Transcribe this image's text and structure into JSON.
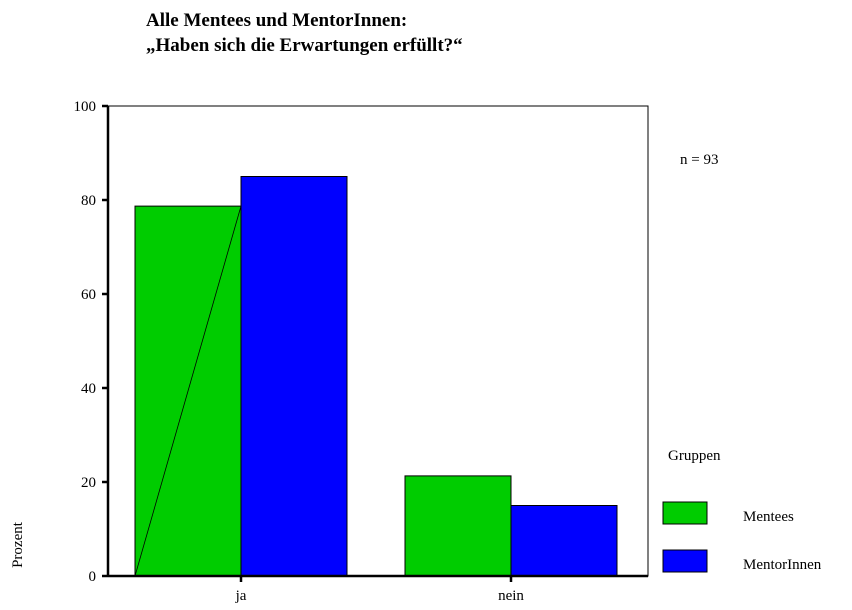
{
  "chart_data": {
    "type": "bar",
    "title": [
      "Alle Mentees und MentorInnen:",
      "„Haben sich die Erwartungen erfüllt?“"
    ],
    "categories": [
      "ja",
      "nein"
    ],
    "series": [
      {
        "name": "Mentees",
        "values": [
          78.7,
          21.3
        ],
        "color": "#00cc00"
      },
      {
        "name": "MentorInnen",
        "values": [
          85.0,
          15.0
        ],
        "color": "#0000ff"
      }
    ],
    "xlabel": "",
    "ylabel": "Prozent",
    "ylim": [
      0,
      100
    ],
    "yticks": [
      0,
      20,
      40,
      60,
      80,
      100
    ],
    "annotation": "n = 93",
    "legend": {
      "title": "Gruppen",
      "position": "right"
    },
    "grid": false
  }
}
